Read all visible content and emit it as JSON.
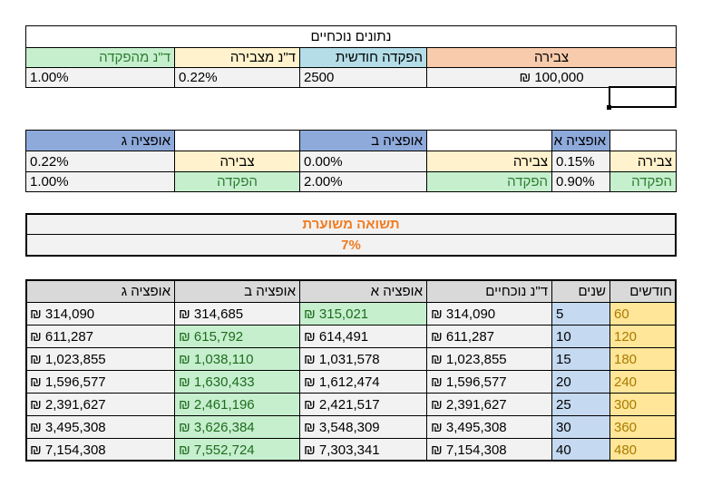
{
  "current": {
    "title": "נתונים נוכחיים",
    "headers": [
      "צבירה",
      "הפקדה חודשית",
      "ד\"נ מצבירה",
      "ד\"נ מהפקדה"
    ],
    "values": [
      "100,000 ₪",
      "2500",
      "0.22%",
      "1.00%"
    ]
  },
  "options": {
    "a": {
      "label": "אופציה א",
      "savings_label": "צבירה",
      "deposit_label": "הפקדה",
      "savings": "0.15%",
      "deposit": "0.90%"
    },
    "b": {
      "label": "אופציה ב",
      "savings_label": "צבירה",
      "deposit_label": "הפקדה",
      "savings": "0.00%",
      "deposit": "2.00%"
    },
    "c": {
      "label": "אופציה ג",
      "savings": "0.22%",
      "deposit": "1.00%"
    }
  },
  "expected_return": {
    "label": "תשואה משוערת",
    "value": "7%"
  },
  "results": {
    "headers": [
      "חודשים",
      "שנים",
      "ד\"נ נוכחיים",
      "אופציה א",
      "אופציה ב",
      "אופציה ג"
    ],
    "rows": [
      [
        "60",
        "5",
        "314,090 ₪",
        "315,021 ₪",
        "314,685 ₪",
        "314,090 ₪"
      ],
      [
        "120",
        "10",
        "611,287 ₪",
        "614,491 ₪",
        "615,792 ₪",
        "611,287 ₪"
      ],
      [
        "180",
        "15",
        "1,023,855 ₪",
        "1,031,578 ₪",
        "1,038,110 ₪",
        "1,023,855 ₪"
      ],
      [
        "240",
        "20",
        "1,596,577 ₪",
        "1,612,474 ₪",
        "1,630,433 ₪",
        "1,596,577 ₪"
      ],
      [
        "300",
        "25",
        "2,391,627 ₪",
        "2,421,517 ₪",
        "2,461,196 ₪",
        "2,391,627 ₪"
      ],
      [
        "360",
        "30",
        "3,495,308 ₪",
        "3,548,309 ₪",
        "3,626,384 ₪",
        "3,495,308 ₪"
      ],
      [
        "480",
        "40",
        "7,154,308 ₪",
        "7,303,341 ₪",
        "7,552,724 ₪",
        "7,154,308 ₪"
      ]
    ],
    "best_column": [
      3,
      4,
      4,
      4,
      4,
      4,
      4
    ]
  }
}
